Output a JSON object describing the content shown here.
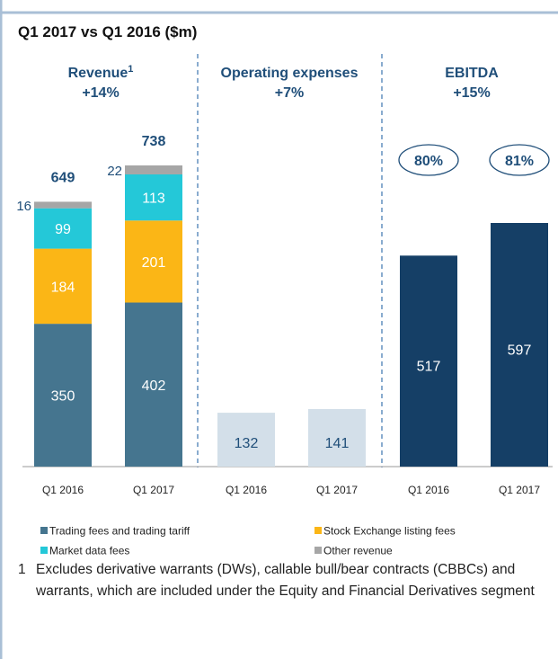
{
  "chart_data": {
    "type": "bar",
    "title": "Q1 2017 vs Q1 2016 ($m)",
    "panels": [
      {
        "title": "Revenue",
        "title_note": "1",
        "change": "+14%",
        "categories": [
          "Q1 2016",
          "Q1 2017"
        ],
        "series": [
          {
            "name": "Trading fees and trading tariff",
            "color": "#45758f",
            "values": [
              350,
              402
            ]
          },
          {
            "name": "Stock Exchange listing fees",
            "color": "#fbb616",
            "values": [
              184,
              201
            ]
          },
          {
            "name": "Market data fees",
            "color": "#24c8d8",
            "values": [
              99,
              113
            ]
          },
          {
            "name": "Other revenue",
            "color": "#a6a6a6",
            "values": [
              16,
              22
            ]
          }
        ],
        "totals": [
          649,
          738
        ]
      },
      {
        "title": "Operating expenses",
        "change": "+7%",
        "categories": [
          "Q1 2016",
          "Q1 2017"
        ],
        "values": [
          132,
          141
        ],
        "color": "#d3dfe9"
      },
      {
        "title": "EBITDA",
        "change": "+15%",
        "categories": [
          "Q1 2016",
          "Q1 2017"
        ],
        "values": [
          517,
          597
        ],
        "color": "#153f66",
        "margins": [
          80,
          81
        ],
        "margin_labels": [
          "80%",
          "81%"
        ]
      }
    ],
    "footnote": {
      "marker": "1",
      "text": "Excludes derivative warrants (DWs), callable bull/bear contracts (CBBCs) and warrants, which are included under the Equity and Financial Derivatives segment"
    }
  }
}
